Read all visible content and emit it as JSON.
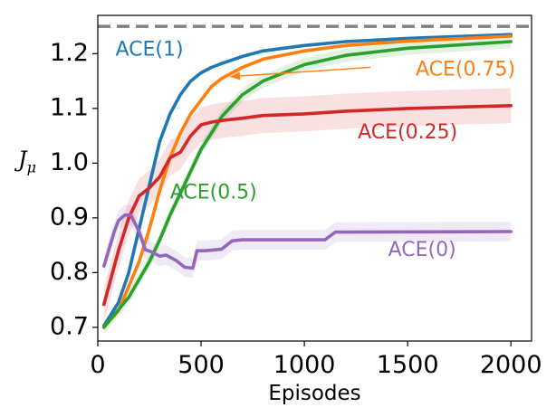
{
  "chart_data": {
    "type": "line",
    "xlabel": "Episodes",
    "ylabel_main": "J",
    "ylabel_sub": "μ",
    "xlim": [
      0,
      2100
    ],
    "ylim": [
      0.675,
      1.27
    ],
    "xticks": [
      0,
      500,
      1000,
      1500,
      2000
    ],
    "xtick_labels": [
      "0",
      "500",
      "1000",
      "1500",
      "2000"
    ],
    "yticks": [
      0.7,
      0.8,
      0.9,
      1.0,
      1.1,
      1.2
    ],
    "ytick_labels": [
      "0.7",
      "0.8",
      "0.9",
      "1.0",
      "1.1",
      "1.2"
    ],
    "reference_line": {
      "y": 1.25,
      "style": "dashed",
      "color": "#808080"
    },
    "series": [
      {
        "name": "ACE(1)",
        "color": "#1f77b4",
        "band": 0.0,
        "label_at": [
          250,
          1.206
        ],
        "label_anchor": "middle",
        "x": [
          30,
          100,
          150,
          200,
          250,
          300,
          350,
          400,
          450,
          500,
          550,
          600,
          700,
          800,
          1000,
          1200,
          1500,
          2000
        ],
        "y": [
          0.703,
          0.745,
          0.8,
          0.88,
          0.96,
          1.04,
          1.09,
          1.125,
          1.15,
          1.165,
          1.175,
          1.182,
          1.195,
          1.205,
          1.215,
          1.222,
          1.228,
          1.235
        ]
      },
      {
        "name": "ACE(0.75)",
        "color": "#ff7f0e",
        "band": 0.0,
        "label_at": [
          1780,
          1.17
        ],
        "label_anchor": "middle",
        "arrow_from": [
          1320,
          1.175
        ],
        "arrow_to": [
          640,
          1.158
        ],
        "x": [
          30,
          100,
          200,
          250,
          300,
          350,
          400,
          450,
          500,
          550,
          600,
          700,
          800,
          1000,
          1200,
          1500,
          2000
        ],
        "y": [
          0.701,
          0.73,
          0.82,
          0.88,
          0.95,
          1.01,
          1.055,
          1.09,
          1.115,
          1.14,
          1.155,
          1.175,
          1.19,
          1.205,
          1.215,
          1.223,
          1.232
        ]
      },
      {
        "name": "ACE(0.5)",
        "color": "#2ca02c",
        "band": 0.012,
        "label_at": [
          560,
          0.945
        ],
        "label_anchor": "middle",
        "x": [
          30,
          150,
          250,
          300,
          350,
          400,
          450,
          500,
          550,
          600,
          700,
          800,
          1000,
          1200,
          1500,
          2000
        ],
        "y": [
          0.7,
          0.755,
          0.82,
          0.86,
          0.905,
          0.945,
          0.985,
          1.025,
          1.055,
          1.085,
          1.125,
          1.15,
          1.18,
          1.197,
          1.21,
          1.222
        ]
      },
      {
        "name": "ACE(0.25)",
        "color": "#d62728",
        "band": 0.032,
        "label_at": [
          1500,
          1.055
        ],
        "label_anchor": "middle",
        "x": [
          30,
          100,
          150,
          200,
          250,
          300,
          350,
          400,
          450,
          500,
          550,
          600,
          700,
          800,
          1000,
          1200,
          1500,
          2000
        ],
        "y": [
          0.742,
          0.84,
          0.9,
          0.94,
          0.955,
          0.975,
          1.01,
          1.02,
          1.05,
          1.07,
          1.075,
          1.078,
          1.082,
          1.087,
          1.09,
          1.095,
          1.1,
          1.105
        ]
      },
      {
        "name": "ACE(0)",
        "color": "#9467bd",
        "band": 0.018,
        "label_at": [
          1570,
          0.84
        ],
        "label_anchor": "middle",
        "x": [
          30,
          80,
          100,
          130,
          160,
          200,
          230,
          260,
          300,
          330,
          380,
          420,
          460,
          480,
          520,
          600,
          650,
          700,
          1100,
          1150,
          2000
        ],
        "y": [
          0.812,
          0.875,
          0.895,
          0.905,
          0.905,
          0.875,
          0.842,
          0.838,
          0.83,
          0.832,
          0.822,
          0.81,
          0.808,
          0.84,
          0.84,
          0.843,
          0.858,
          0.86,
          0.86,
          0.874,
          0.875
        ]
      }
    ]
  }
}
